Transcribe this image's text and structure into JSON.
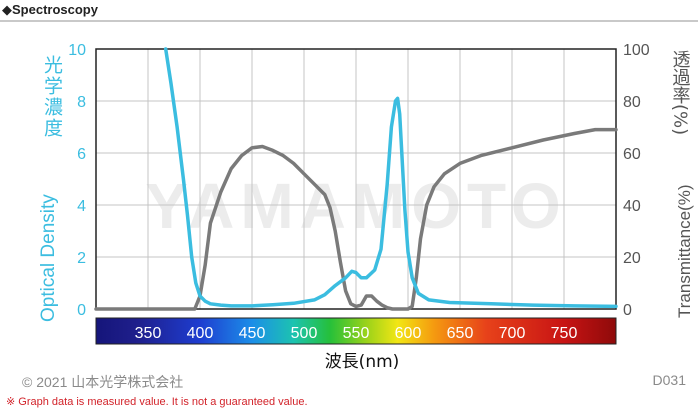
{
  "header": {
    "title": "◆Spectroscopy"
  },
  "watermark": "YAMAMOTO",
  "colors": {
    "od": "#3bbde0",
    "trans": "#7a7a7a"
  },
  "chart_data": {
    "type": "line",
    "title": "",
    "xlabel": "波長(nm)",
    "ylabel_left_jp": "光学濃度",
    "ylabel_left_en": "Optical Density",
    "ylabel_right_jp": "透過率(%)",
    "ylabel_right_en": "Transmittance(%)",
    "xlim": [
      300,
      800
    ],
    "ylim_left": [
      0,
      10
    ],
    "ylim_right": [
      0,
      100
    ],
    "grid": true,
    "x_ticks": [
      "350",
      "400",
      "450",
      "500",
      "550",
      "600",
      "650",
      "700",
      "750"
    ],
    "y_left_ticks": [
      "0",
      "2",
      "4",
      "6",
      "8",
      "10"
    ],
    "y_right_ticks": [
      "0",
      "20",
      "40",
      "60",
      "80",
      "100"
    ],
    "series": [
      {
        "axis": "left",
        "x": [
          367,
          372,
          378,
          384,
          388,
          392,
          396,
          400,
          405,
          410,
          420,
          430,
          450,
          470,
          490,
          510,
          520,
          530,
          540,
          546,
          550,
          555,
          560,
          568,
          574,
          580,
          584,
          588,
          590,
          592,
          594,
          597,
          600,
          604,
          610,
          620,
          640,
          680,
          720,
          760,
          800
        ],
        "y": [
          10,
          8.7,
          7.0,
          5.0,
          3.6,
          2.0,
          1.0,
          0.5,
          0.3,
          0.2,
          0.15,
          0.12,
          0.12,
          0.16,
          0.22,
          0.35,
          0.55,
          0.9,
          1.2,
          1.45,
          1.4,
          1.2,
          1.2,
          1.5,
          2.3,
          4.8,
          7.0,
          8.0,
          8.1,
          7.5,
          6.0,
          3.8,
          2.2,
          1.2,
          0.6,
          0.35,
          0.25,
          0.2,
          0.15,
          0.12,
          0.1
        ]
      },
      {
        "axis": "right",
        "x": [
          300,
          395,
          400,
          405,
          410,
          420,
          430,
          440,
          450,
          460,
          470,
          480,
          490,
          500,
          510,
          520,
          525,
          530,
          535,
          540,
          545,
          550,
          555,
          560,
          565,
          570,
          575,
          580,
          585,
          590,
          595,
          600,
          604,
          608,
          612,
          618,
          625,
          635,
          650,
          670,
          700,
          730,
          760,
          780,
          800
        ],
        "y": [
          0,
          0,
          5,
          17,
          33,
          45,
          54,
          59,
          62,
          62.5,
          61,
          59,
          56,
          52,
          48,
          44,
          39,
          30,
          18,
          7,
          2,
          1,
          1.5,
          5,
          5,
          3,
          1.5,
          0.5,
          0,
          0,
          0,
          0,
          1,
          12,
          27,
          40,
          47,
          52,
          56,
          59,
          62,
          65,
          67.5,
          69,
          69
        ]
      }
    ],
    "spectrum_labels": [
      "350",
      "400",
      "450",
      "500",
      "550",
      "600",
      "650",
      "700",
      "750"
    ]
  },
  "footer": {
    "copyright": "© 2021 山本光学株式会社",
    "code": "D031",
    "note": "※ Graph data is measured value. It is not a guaranteed value."
  }
}
